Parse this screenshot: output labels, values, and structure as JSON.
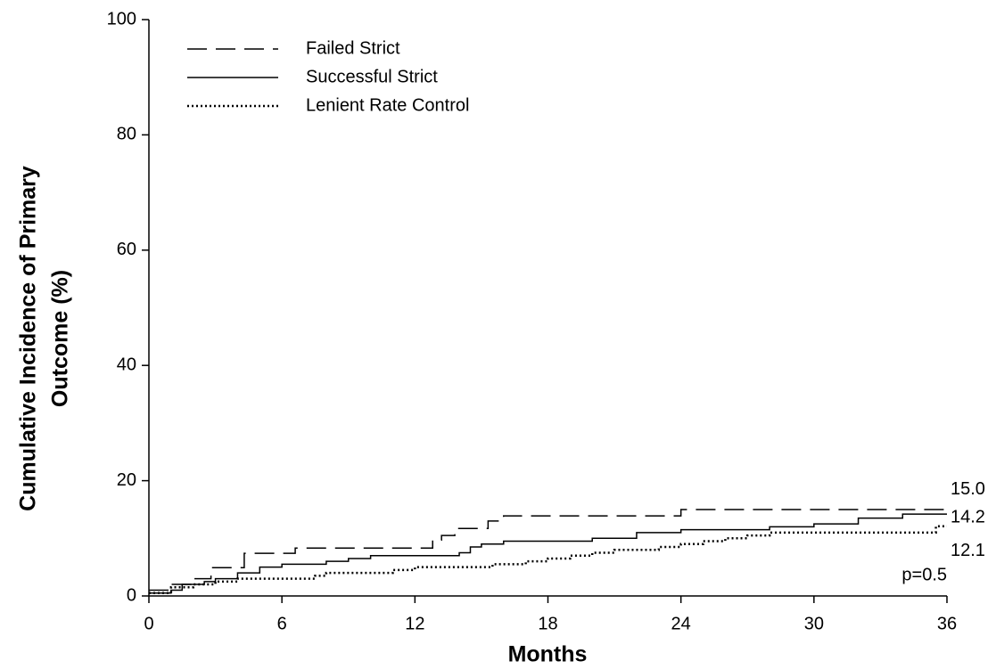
{
  "chart_data": {
    "type": "step",
    "xlabel": "Months",
    "ylabel": [
      "Cumulative Incidence of Primary",
      "Outcome (%)"
    ],
    "xlim": [
      0,
      36
    ],
    "xticks": [
      0,
      6,
      12,
      18,
      24,
      30,
      36
    ],
    "ylim": [
      0,
      100
    ],
    "yticks": [
      0,
      20,
      40,
      60,
      80,
      100
    ],
    "grid": false,
    "legend": "upper left",
    "annotation": "p=0.5",
    "series": [
      {
        "name": "Failed Strict",
        "color": "#000000",
        "dash": "dashed",
        "final_label": "15.0",
        "x": [
          0,
          1,
          2,
          2.8,
          4.3,
          6.6,
          12.8,
          13.2,
          13.8,
          15.3,
          16,
          24,
          36
        ],
        "values": [
          1,
          2,
          3,
          4.9,
          7.4,
          8.3,
          9.7,
          10.5,
          11.7,
          13,
          13.9,
          15,
          15
        ]
      },
      {
        "name": "Successful Strict",
        "color": "#000000",
        "dash": "solid",
        "final_label": "14.2",
        "x": [
          0,
          1,
          1.5,
          2.5,
          3,
          4,
          5,
          6,
          8,
          9,
          10,
          14,
          14.5,
          15,
          16,
          20,
          22,
          24,
          28,
          30,
          32,
          34,
          36
        ],
        "values": [
          0.5,
          1,
          2,
          2.5,
          3,
          4,
          5,
          5.5,
          6,
          6.5,
          7,
          7.5,
          8.5,
          9,
          9.5,
          10,
          11,
          11.5,
          12,
          12.5,
          13.5,
          14.2,
          14.2
        ]
      },
      {
        "name": "Lenient Rate Control",
        "color": "#000000",
        "dash": "dotted",
        "final_label": "12.1",
        "x": [
          0,
          1,
          2,
          3,
          4,
          7.5,
          8,
          11,
          12,
          15.5,
          17,
          18,
          19,
          20,
          21,
          23,
          24,
          25,
          26,
          27,
          28,
          30,
          35.5,
          36
        ],
        "values": [
          0.5,
          1.5,
          2,
          2.5,
          3,
          3.5,
          4,
          4.5,
          5,
          5.5,
          6,
          6.5,
          7,
          7.5,
          8,
          8.5,
          9,
          9.5,
          10,
          10.5,
          11,
          11,
          12.1,
          12.1
        ]
      }
    ]
  }
}
